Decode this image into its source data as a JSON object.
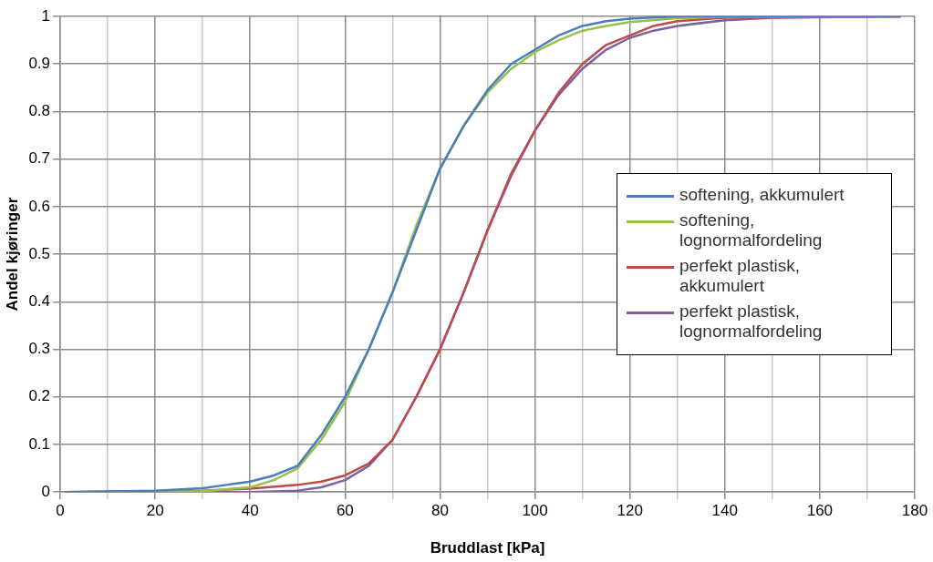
{
  "chart_data": {
    "type": "line",
    "xlabel": "Bruddlast [kPa]",
    "ylabel": "Andel kjøringer",
    "xlim": [
      0,
      180
    ],
    "xticks": [
      0,
      {
        "value": 10,
        "label": null
      },
      20,
      {
        "value": 30,
        "label": null
      },
      40,
      {
        "value": 50,
        "label": null
      },
      60,
      {
        "value": 70,
        "label": null
      },
      80,
      {
        "value": 90,
        "label": null
      },
      100,
      {
        "value": 110,
        "label": null
      },
      120,
      {
        "value": 130,
        "label": null
      },
      140,
      {
        "value": 150,
        "label": null
      },
      160,
      {
        "value": 170,
        "label": null
      },
      180
    ],
    "ylim": [
      0,
      1
    ],
    "yticks": [
      0,
      0.1,
      0.2,
      0.3,
      0.4,
      0.5,
      0.6,
      0.7,
      0.8,
      0.9,
      1
    ],
    "grid": true,
    "legend": "right",
    "marker": "none",
    "line_style": "solid",
    "series": [
      {
        "name": "softening, akkumulert",
        "color": "#4a7ebb",
        "x": [
          1,
          20,
          30,
          35,
          40,
          45,
          50,
          55,
          60,
          65,
          70,
          75,
          80,
          85,
          90,
          95,
          100,
          105,
          110,
          115,
          120,
          130,
          177
        ],
        "values": [
          0,
          0.003,
          0.008,
          0.015,
          0.022,
          0.035,
          0.055,
          0.12,
          0.2,
          0.3,
          0.42,
          0.55,
          0.68,
          0.77,
          0.845,
          0.9,
          0.93,
          0.96,
          0.98,
          0.99,
          0.995,
          1,
          1
        ]
      },
      {
        "name": "softening, lognormalfordeling",
        "color": "#98c04a",
        "x": [
          1,
          30,
          40,
          45,
          50,
          55,
          60,
          65,
          70,
          75,
          80,
          85,
          90,
          95,
          100,
          105,
          110,
          115,
          120,
          130,
          140,
          177
        ],
        "values": [
          0,
          0.002,
          0.01,
          0.025,
          0.05,
          0.11,
          0.19,
          0.3,
          0.42,
          0.56,
          0.68,
          0.77,
          0.84,
          0.89,
          0.925,
          0.95,
          0.97,
          0.98,
          0.988,
          0.996,
          0.999,
          1
        ]
      },
      {
        "name": "perfekt plastisk, akkumulert",
        "color": "#be4b48",
        "x": [
          1,
          30,
          40,
          50,
          55,
          60,
          65,
          70,
          75,
          80,
          85,
          90,
          95,
          100,
          105,
          110,
          115,
          120,
          125,
          130,
          140,
          177
        ],
        "values": [
          0,
          0.003,
          0.007,
          0.015,
          0.022,
          0.035,
          0.06,
          0.11,
          0.2,
          0.3,
          0.42,
          0.55,
          0.67,
          0.76,
          0.84,
          0.9,
          0.94,
          0.96,
          0.98,
          0.99,
          0.997,
          1
        ]
      },
      {
        "name": "perfekt plastisk, lognormalfordeling",
        "color": "#7d60a0",
        "x": [
          1,
          40,
          50,
          55,
          60,
          65,
          70,
          75,
          80,
          85,
          90,
          95,
          100,
          105,
          110,
          115,
          120,
          125,
          130,
          140,
          150,
          177
        ],
        "values": [
          0,
          0,
          0.003,
          0.01,
          0.025,
          0.055,
          0.11,
          0.2,
          0.3,
          0.42,
          0.55,
          0.665,
          0.76,
          0.835,
          0.89,
          0.93,
          0.955,
          0.97,
          0.98,
          0.992,
          0.997,
          1
        ]
      }
    ]
  }
}
